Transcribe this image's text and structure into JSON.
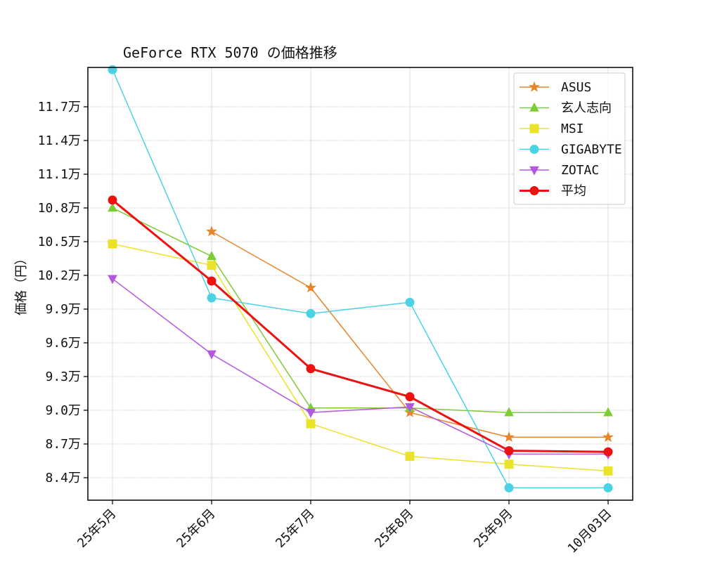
{
  "chart_data": {
    "type": "line",
    "title": "GeForce RTX 5070 の価格推移",
    "xlabel": "",
    "ylabel": "価格（円）",
    "categories": [
      "25年5月",
      "25年6月",
      "25年7月",
      "25年8月",
      "25年9月",
      "10月03日"
    ],
    "ylim": [
      82000,
      120500
    ],
    "y_ticks": [
      {
        "value": 84000,
        "label": "8.4万"
      },
      {
        "value": 87000,
        "label": "8.7万"
      },
      {
        "value": 90000,
        "label": "9.0万"
      },
      {
        "value": 93000,
        "label": "9.3万"
      },
      {
        "value": 96000,
        "label": "9.6万"
      },
      {
        "value": 99000,
        "label": "9.9万"
      },
      {
        "value": 102000,
        "label": "10.2万"
      },
      {
        "value": 105000,
        "label": "10.5万"
      },
      {
        "value": 108000,
        "label": "10.8万"
      },
      {
        "value": 111000,
        "label": "11.1万"
      },
      {
        "value": 114000,
        "label": "11.4万"
      },
      {
        "value": 117000,
        "label": "11.7万"
      }
    ],
    "grid": true,
    "legend_position": "top-right",
    "series": [
      {
        "name": "ASUS",
        "color": "#e8852a",
        "marker": "star",
        "linewidth": 1.5,
        "values": [
          null,
          105900,
          100900,
          89800,
          87600,
          87600
        ]
      },
      {
        "name": "玄人志向",
        "color": "#7dcc35",
        "marker": "triangle-up",
        "linewidth": 1.5,
        "values": [
          108000,
          103700,
          90200,
          90200,
          89800,
          89800
        ]
      },
      {
        "name": "MSI",
        "color": "#ebe32a",
        "marker": "square",
        "linewidth": 1.5,
        "values": [
          104800,
          102900,
          88800,
          85900,
          85200,
          84600
        ]
      },
      {
        "name": "GIGABYTE",
        "color": "#4bd3e3",
        "marker": "circle",
        "linewidth": 1.5,
        "values": [
          120300,
          100000,
          98600,
          99600,
          83100,
          83100
        ]
      },
      {
        "name": "ZOTAC",
        "color": "#b358e0",
        "marker": "triangle-down",
        "linewidth": 1.5,
        "values": [
          101700,
          95000,
          89800,
          90300,
          86100,
          86100
        ]
      },
      {
        "name": "平均",
        "color": "#ee1111",
        "marker": "circle",
        "linewidth": 3,
        "values": [
          108700,
          101500,
          93700,
          91200,
          86400,
          86300
        ]
      }
    ]
  }
}
